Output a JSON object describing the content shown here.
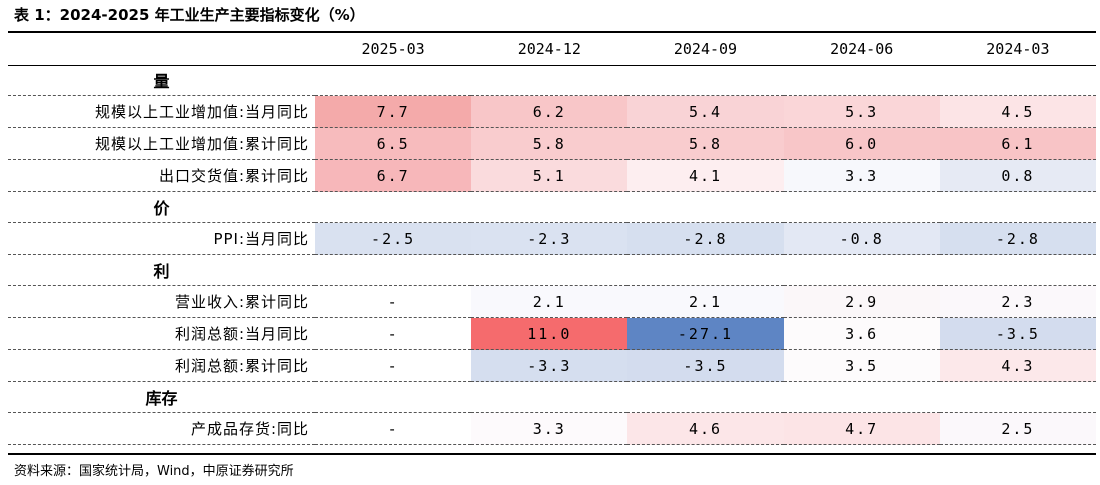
{
  "title": "表 1：2024-2025 年工业生产主要指标变化（%）",
  "columns": [
    "2025-03",
    "2024-12",
    "2024-09",
    "2024-06",
    "2024-03"
  ],
  "sections": [
    {
      "name": "量",
      "rows": [
        {
          "label": "规模以上工业增加值:当月同比",
          "values": [
            "7.7",
            "6.2",
            "5.4",
            "5.3",
            "4.5"
          ],
          "colors": [
            "#f4aaaa",
            "#f8c6c8",
            "#f9d3d6",
            "#fad6d8",
            "#fce4e6"
          ]
        },
        {
          "label": "规模以上工业增加值:累计同比",
          "values": [
            "6.5",
            "5.8",
            "5.8",
            "6.0",
            "6.1"
          ],
          "colors": [
            "#f7bbbd",
            "#f9ccce",
            "#f9ccce",
            "#f8c6c8",
            "#f8c4c6"
          ]
        },
        {
          "label": "出口交货值:累计同比",
          "values": [
            "6.7",
            "5.1",
            "4.1",
            "3.3",
            "0.8"
          ],
          "colors": [
            "#f7b7ba",
            "#fadbdd",
            "#fdeef0",
            "#f7f8fc",
            "#e6eaf4"
          ]
        }
      ]
    },
    {
      "name": "价",
      "rows": [
        {
          "label": "PPI:当月同比",
          "values": [
            "-2.5",
            "-2.3",
            "-2.8",
            "-0.8",
            "-2.8"
          ],
          "colors": [
            "#d9e1f0",
            "#dae2f1",
            "#d6dfef",
            "#e3e8f4",
            "#d6dfef"
          ]
        }
      ]
    },
    {
      "name": "利",
      "rows": [
        {
          "label": "营业收入:累计同比",
          "values": [
            "-",
            "2.1",
            "2.1",
            "2.9",
            "2.3"
          ],
          "colors": [
            "#ffffff",
            "#f9f9fd",
            "#f9f9fd",
            "#fbf7f9",
            "#fbf8fb"
          ]
        },
        {
          "label": "利润总额:当月同比",
          "values": [
            "-",
            "11.0",
            "-27.1",
            "3.6",
            "-3.5"
          ],
          "colors": [
            "#ffffff",
            "#f56b6d",
            "#5e85c4",
            "#fdfbfc",
            "#d3dcee"
          ]
        },
        {
          "label": "利润总额:累计同比",
          "values": [
            "-",
            "-3.3",
            "-3.5",
            "3.5",
            "4.3"
          ],
          "colors": [
            "#ffffff",
            "#d5deef",
            "#d3dcee",
            "#fdfbfc",
            "#fce8ea"
          ]
        }
      ]
    },
    {
      "name": "库存",
      "rows": [
        {
          "label": "产成品存货:同比",
          "values": [
            "-",
            "3.3",
            "4.6",
            "4.7",
            "2.5"
          ],
          "colors": [
            "#ffffff",
            "#fdfafc",
            "#fce6e8",
            "#fce4e6",
            "#fbf8fb"
          ]
        }
      ]
    }
  ],
  "source": "资料来源：国家统计局，Wind，中原证券研究所"
}
